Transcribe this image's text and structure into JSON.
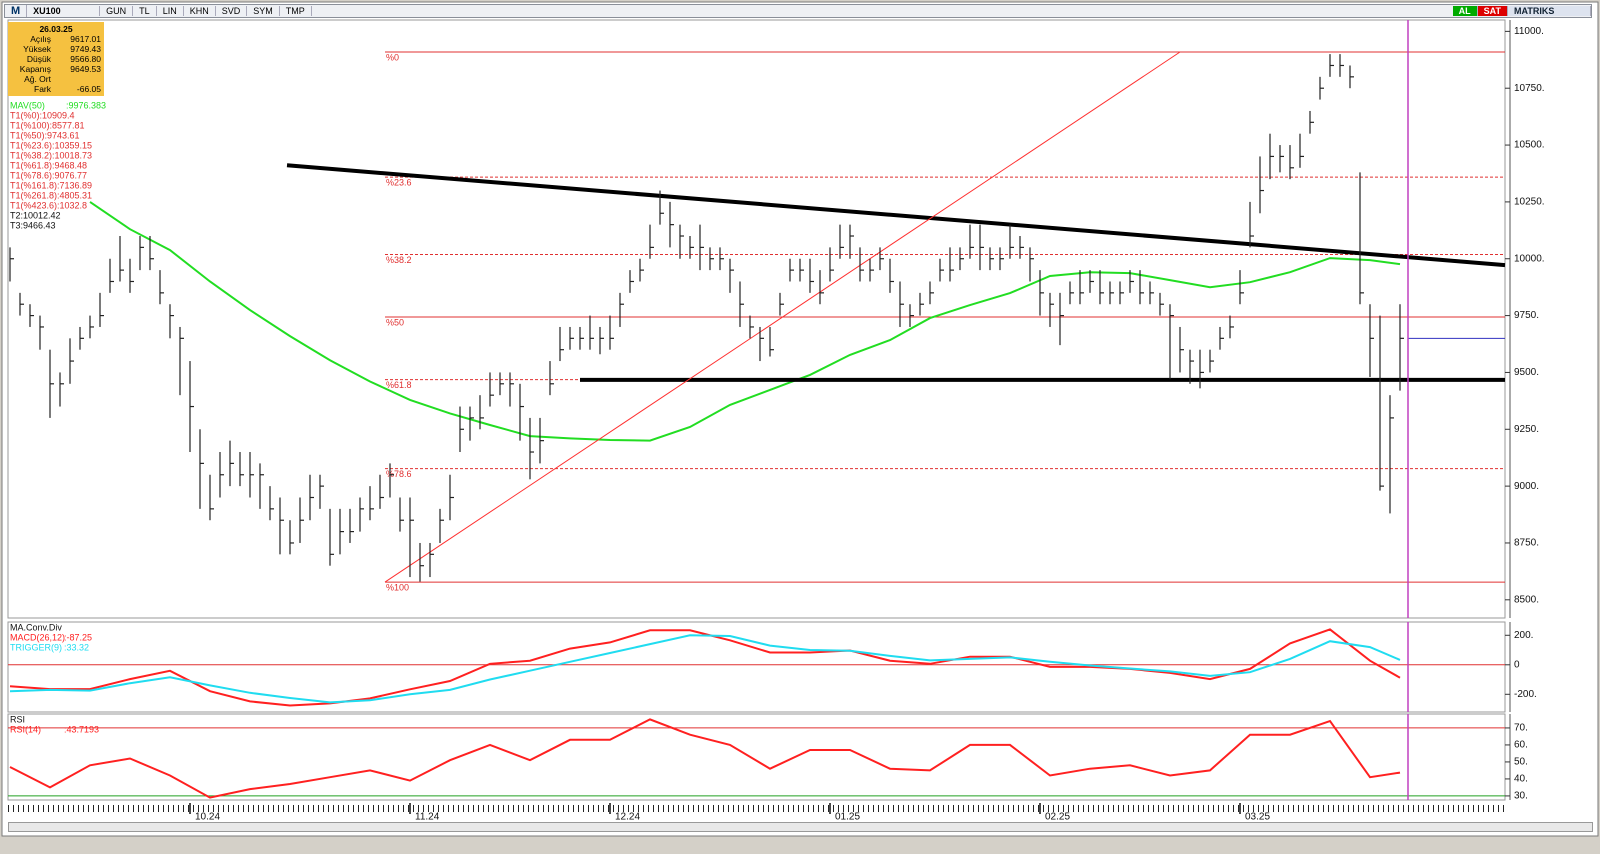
{
  "toolbar": {
    "menu": "M",
    "symbol": "XU100",
    "buttons": [
      "GUN",
      "TL",
      "LIN",
      "KHN",
      "SVD",
      "SYM",
      "TMP"
    ],
    "buy": "AL",
    "sell": "SAT",
    "brand": "MATRIKS"
  },
  "info_box": {
    "date": "26.03.25",
    "rows": [
      [
        "Açılış",
        "9617.01"
      ],
      [
        "Yüksek",
        "9749.43"
      ],
      [
        "Düşük",
        "9566.80"
      ],
      [
        "Kapanış",
        "9649.53"
      ],
      [
        "Ağ. Ort"
      ],
      [
        "Fark",
        "-66.05"
      ]
    ]
  },
  "chart_data": [
    {
      "type": "hlc",
      "xlim": [
        -0.2,
        149.5
      ],
      "ylim": [
        8420,
        11050
      ],
      "yticks": [
        {
          "value": 11000,
          "label": "11000."
        },
        {
          "value": 10750,
          "label": "10750."
        },
        {
          "value": 10500,
          "label": "10500."
        },
        {
          "value": 10250,
          "label": "10250."
        },
        {
          "value": 10000,
          "label": "10000."
        },
        {
          "value": 9750,
          "label": "9750."
        },
        {
          "value": 9500,
          "label": "9500."
        },
        {
          "value": 9250,
          "label": "9250."
        },
        {
          "value": 9000,
          "label": "9000."
        },
        {
          "value": 8750,
          "label": "8750."
        },
        {
          "value": 8500,
          "label": "8500."
        }
      ],
      "bars": {
        "high": [
          10050,
          9850,
          9800,
          9750,
          9600,
          9500,
          9650,
          9700,
          9750,
          9850,
          10000,
          10100,
          10000,
          10100,
          10100,
          9950,
          9800,
          9700,
          9550,
          9250,
          9050,
          9150,
          9200,
          9150,
          9150,
          9100,
          9000,
          8950,
          8850,
          8950,
          9050,
          9050,
          8900,
          8900,
          8900,
          8950,
          9000,
          9050,
          9100,
          8950,
          8950,
          8750,
          8750,
          8900,
          9050,
          9350,
          9350,
          9400,
          9500,
          9500,
          9500,
          9450,
          9300,
          9300,
          9550,
          9700,
          9700,
          9700,
          9750,
          9700,
          9750,
          9850,
          9950,
          10000,
          10150,
          10300,
          10250,
          10150,
          10100,
          10150,
          10050,
          10050,
          10000,
          9900,
          9750,
          9700,
          9700,
          9850,
          10000,
          10000,
          10000,
          9950,
          10050,
          10150,
          10150,
          10050,
          10000,
          10050,
          10000,
          9900,
          9800,
          9850,
          9900,
          10000,
          10050,
          10050,
          10150,
          10150,
          10050,
          10050,
          10150,
          10100,
          10050,
          9950,
          9850,
          9850,
          9900,
          9950,
          9950,
          9950,
          9900,
          9900,
          9950,
          9950,
          9900,
          9850,
          9800,
          9700,
          9600,
          9600,
          9600,
          9700,
          9750,
          9950,
          10250,
          10450,
          10550,
          10500,
          10500,
          10550,
          10650,
          10800,
          10900,
          10900,
          10850,
          10380,
          9800,
          9750,
          9400,
          9800
        ],
        "low": [
          9900,
          9750,
          9700,
          9600,
          9300,
          9350,
          9450,
          9600,
          9650,
          9700,
          9850,
          9900,
          9850,
          9950,
          9950,
          9800,
          9650,
          9400,
          9150,
          8900,
          8850,
          8950,
          9000,
          9000,
          8950,
          8900,
          8850,
          8700,
          8700,
          8750,
          8850,
          8900,
          8650,
          8700,
          8750,
          8800,
          8850,
          8900,
          8950,
          8800,
          8600,
          8580,
          8600,
          8750,
          8850,
          9150,
          9200,
          9250,
          9350,
          9400,
          9350,
          9200,
          9030,
          9100,
          9400,
          9550,
          9600,
          9600,
          9600,
          9580,
          9600,
          9700,
          9850,
          9900,
          10000,
          10150,
          10050,
          10000,
          10000,
          9950,
          9950,
          9950,
          9850,
          9700,
          9650,
          9550,
          9570,
          9750,
          9900,
          9900,
          9850,
          9800,
          9900,
          10000,
          10000,
          9900,
          9900,
          9950,
          9850,
          9700,
          9700,
          9750,
          9800,
          9900,
          9900,
          9950,
          10000,
          9950,
          9950,
          9950,
          10000,
          10000,
          9900,
          9750,
          9700,
          9620,
          9800,
          9800,
          9850,
          9800,
          9800,
          9800,
          9850,
          9800,
          9800,
          9750,
          9470,
          9500,
          9450,
          9430,
          9500,
          9600,
          9650,
          9800,
          10050,
          10200,
          10350,
          10380,
          10350,
          10400,
          10550,
          10700,
          10800,
          10800,
          10750,
          9800,
          9480,
          8980,
          8880,
          9420
        ],
        "close": [
          10000,
          9800,
          9750,
          9700,
          9450,
          9450,
          9550,
          9650,
          9700,
          9750,
          9900,
          9950,
          9900,
          10050,
          10000,
          9850,
          9750,
          9650,
          9350,
          9100,
          8900,
          9050,
          9100,
          9050,
          9050,
          9050,
          8900,
          8850,
          8750,
          8850,
          8950,
          9000,
          8700,
          8800,
          8800,
          8900,
          8900,
          8950,
          9050,
          8850,
          8850,
          8650,
          8700,
          8850,
          8950,
          9250,
          9300,
          9300,
          9400,
          9450,
          9450,
          9350,
          9150,
          9200,
          9450,
          9600,
          9650,
          9650,
          9650,
          9650,
          9650,
          9800,
          9900,
          9950,
          10050,
          10200,
          10150,
          10100,
          10050,
          10050,
          10000,
          10000,
          9950,
          9800,
          9700,
          9650,
          9600,
          9800,
          9950,
          9950,
          9900,
          9850,
          9950,
          10050,
          10100,
          9950,
          9950,
          10000,
          9900,
          9800,
          9750,
          9800,
          9850,
          9950,
          9950,
          10000,
          10050,
          10050,
          10000,
          10000,
          10050,
          10050,
          10000,
          9850,
          9800,
          9750,
          9850,
          9850,
          9900,
          9850,
          9850,
          9850,
          9900,
          9850,
          9850,
          9800,
          9750,
          9600,
          9550,
          9500,
          9550,
          9650,
          9700,
          9850,
          10100,
          10300,
          10450,
          10450,
          10400,
          10450,
          10600,
          10750,
          10850,
          10850,
          10800,
          9850,
          9650,
          9000,
          9300,
          9650
        ]
      },
      "lines": [
        {
          "name": "MAV(50)",
          "value_label": ":9976.383",
          "color": "#22dd22",
          "x": [
            8,
            12,
            16,
            20,
            24,
            28,
            32,
            36,
            40,
            44,
            48,
            52,
            56,
            60,
            64,
            68,
            72,
            76,
            80,
            84,
            88,
            92,
            96,
            100,
            104,
            108,
            112,
            116,
            120,
            124,
            128,
            132,
            136,
            139
          ],
          "values": [
            10250,
            10130,
            10038,
            9900,
            9774,
            9660,
            9554,
            9460,
            9379,
            9320,
            9269,
            9220,
            9210,
            9203,
            9200,
            9260,
            9357,
            9423,
            9489,
            9577,
            9642,
            9739,
            9796,
            9849,
            9924,
            9941,
            9937,
            9906,
            9875,
            9897,
            9941,
            10003,
            9994,
            9976.383
          ]
        }
      ],
      "fib": {
        "x0": 37.5,
        "color": "#e03030",
        "levels": [
          {
            "value": 10909.4,
            "label": "%0",
            "style": "solid"
          },
          {
            "value": 10359.15,
            "label": "%23.6",
            "style": "dashed"
          },
          {
            "value": 10018.73,
            "label": "%38.2",
            "style": "dashed"
          },
          {
            "value": 9743.61,
            "label": "%50",
            "style": "solid"
          },
          {
            "value": 9468.48,
            "label": "%61.8",
            "style": "dashed"
          },
          {
            "value": 9076.77,
            "label": "%78.6",
            "style": "dashed"
          },
          {
            "value": 8577.81,
            "label": "%100",
            "style": "solid"
          }
        ]
      },
      "trendlines": [
        {
          "x": [
            27.7,
            149.5
          ],
          "y": [
            10411,
            9972
          ],
          "color": "#000000",
          "width": 4
        },
        {
          "x": [
            57,
            149.5
          ],
          "y": [
            9467,
            9467
          ],
          "color": "#000000",
          "width": 4
        },
        {
          "x": [
            37.5,
            117
          ],
          "y": [
            8577.81,
            10909.4
          ],
          "color": "#ff3030",
          "width": 1
        }
      ],
      "cursor_x": 139.8,
      "last_price": {
        "value": 9649.53,
        "color": "#3030c0"
      },
      "annotations": [
        {
          "text": "T1(%0):10909.4",
          "color": "#e03030"
        },
        {
          "text": "T1(%100):8577.81",
          "color": "#e03030"
        },
        {
          "text": "T1(%50):9743.61",
          "color": "#e03030"
        },
        {
          "text": "T1(%23.6):10359.15",
          "color": "#e03030"
        },
        {
          "text": "T1(%38.2):10018.73",
          "color": "#e03030"
        },
        {
          "text": "T1(%61.8):9468.48",
          "color": "#e03030"
        },
        {
          "text": "T1(%78.6):9076.77",
          "color": "#e03030"
        },
        {
          "text": "T1(%161.8):7136.89",
          "color": "#e03030"
        },
        {
          "text": "T1(%261.8):4805.31",
          "color": "#e03030"
        },
        {
          "text": "T1(%423.6):1032.8",
          "color": "#e03030"
        },
        {
          "text": "T2:10012.42",
          "color": "#111111"
        },
        {
          "text": "T3:9466.43",
          "color": "#111111"
        }
      ]
    },
    {
      "type": "line",
      "title": "MA.Conv.Div",
      "xlim": [
        -0.2,
        149.5
      ],
      "ylim": [
        -320,
        290
      ],
      "yticks": [
        {
          "value": 200,
          "label": "200."
        },
        0,
        {
          "value": -200,
          "label": "-200."
        }
      ],
      "ref_lines": [
        {
          "value": 0,
          "color": "#e03030"
        }
      ],
      "cursor_x": 139.8,
      "x": [
        0,
        4,
        8,
        12,
        16,
        20,
        24,
        28,
        32,
        36,
        40,
        44,
        48,
        52,
        56,
        60,
        64,
        68,
        72,
        76,
        80,
        84,
        88,
        92,
        96,
        100,
        104,
        108,
        112,
        116,
        120,
        124,
        128,
        132,
        136,
        139
      ],
      "series": [
        {
          "name": "MACD(26,12)",
          "value_label": ":-87.25",
          "color": "#ff2020",
          "values": [
            -145,
            -165,
            -165,
            -97,
            -41,
            -179,
            -248,
            -276,
            -262,
            -228,
            -166,
            -110,
            7,
            28,
            110,
            152,
            234,
            234,
            166,
            83,
            83,
            97,
            28,
            7,
            55,
            55,
            -14,
            -14,
            -28,
            -55,
            -97,
            -28,
            145,
            240,
            28,
            -87.25
          ]
        },
        {
          "name": "TRIGGER(9)",
          "value_label": ":33.32",
          "color": "#20dcf0",
          "values": [
            -180,
            -170,
            -175,
            -125,
            -85,
            -140,
            -190,
            -225,
            -255,
            -240,
            -200,
            -170,
            -100,
            -40,
            20,
            80,
            140,
            200,
            195,
            130,
            100,
            95,
            60,
            30,
            40,
            50,
            20,
            -5,
            -25,
            -45,
            -75,
            -50,
            40,
            160,
            120,
            33.32
          ]
        }
      ]
    },
    {
      "type": "line",
      "title": "RSI",
      "xlim": [
        -0.2,
        149.5
      ],
      "ylim": [
        27.6,
        78.2
      ],
      "yticks": [
        {
          "value": 70,
          "label": "70."
        },
        {
          "value": 60,
          "label": "60."
        },
        {
          "value": 50,
          "label": "50."
        },
        {
          "value": 40,
          "label": "40."
        },
        {
          "value": 30,
          "label": "30."
        }
      ],
      "ref_lines": [
        {
          "value": 70,
          "color": "#e03030"
        },
        {
          "value": 30,
          "color": "#20a020"
        }
      ],
      "cursor_x": 139.8,
      "x": [
        0,
        4,
        8,
        12,
        16,
        20,
        24,
        28,
        32,
        36,
        40,
        44,
        48,
        52,
        56,
        60,
        64,
        68,
        72,
        76,
        80,
        84,
        88,
        92,
        96,
        100,
        104,
        108,
        112,
        116,
        120,
        124,
        128,
        132,
        136,
        139
      ],
      "series": [
        {
          "name": "RSI(14)",
          "value_label": ":43.7193",
          "color": "#ff2020",
          "values": [
            47,
            35,
            48,
            52,
            42,
            29,
            34,
            37,
            41,
            45,
            39,
            51,
            60,
            51,
            63,
            63,
            75,
            66,
            60,
            46,
            57,
            57,
            46,
            45,
            60,
            60,
            42,
            46,
            48,
            42,
            45,
            66,
            66,
            74,
            41,
            43.7193
          ]
        }
      ],
      "xticks": [
        {
          "value": 18,
          "label": "10.24"
        },
        {
          "value": 40,
          "label": "11.24"
        },
        {
          "value": 60,
          "label": "12.24"
        },
        {
          "value": 82,
          "label": "01.25"
        },
        {
          "value": 103,
          "label": "02.25"
        },
        {
          "value": 123,
          "label": "03.25"
        }
      ]
    }
  ]
}
